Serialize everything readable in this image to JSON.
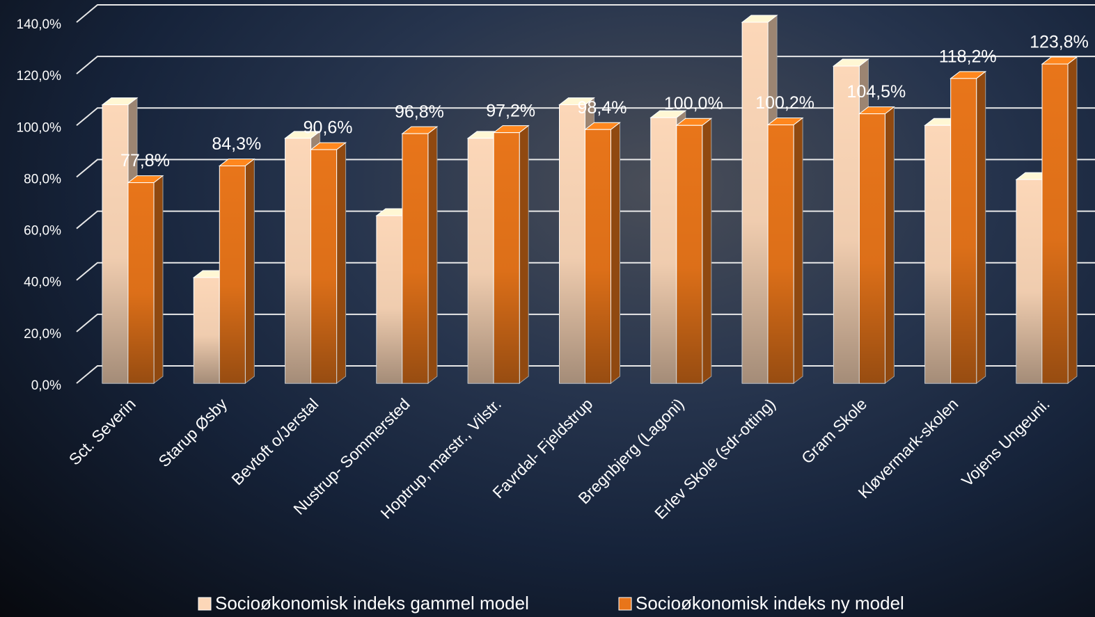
{
  "chart_data": {
    "type": "bar3d",
    "categories": [
      "Sct. Severin",
      "Starup Øsby",
      "Bevtoft o/Jerstal",
      "Nustrup- Sommersted",
      "Hoptrup, marstr., Vilstr.",
      "Favrdal- Fjeldstrup",
      "Bregnbjerg (Lagoni)",
      "Erlev Skole (sdr-otting)",
      "Gram Skole",
      "Kløvermark-skolen",
      "Vojens Ungeuni."
    ],
    "series": [
      {
        "name": "Socioøkonomisk indeks gammel model",
        "color": "#fcd7b8",
        "values": [
          108,
          41,
          95,
          65,
          95,
          108,
          103,
          140,
          123,
          100,
          79
        ]
      },
      {
        "name": "Socioøkonomisk indeks ny model",
        "color": "#e8751a",
        "values": [
          77.8,
          84.3,
          90.6,
          96.8,
          97.2,
          98.4,
          100.0,
          100.2,
          104.5,
          118.2,
          123.8
        ],
        "value_labels": [
          "77,8%",
          "84,3%",
          "90,6%",
          "96,8%",
          "97,2%",
          "98,4%",
          "100,0%",
          "100,2%",
          "104,5%",
          "118,2%",
          "123,8%"
        ]
      }
    ],
    "ylim": [
      0,
      140
    ],
    "yticks": [
      {
        "value": 0,
        "label": "0,0%"
      },
      {
        "value": 20,
        "label": "20,0%"
      },
      {
        "value": 40,
        "label": "40,0%"
      },
      {
        "value": 60,
        "label": "60,0%"
      },
      {
        "value": 80,
        "label": "80,0%"
      },
      {
        "value": 100,
        "label": "100,0%"
      },
      {
        "value": 120,
        "label": "120,0%"
      },
      {
        "value": 140,
        "label": "140,0%"
      }
    ],
    "grid": true,
    "legend": "bottom"
  }
}
